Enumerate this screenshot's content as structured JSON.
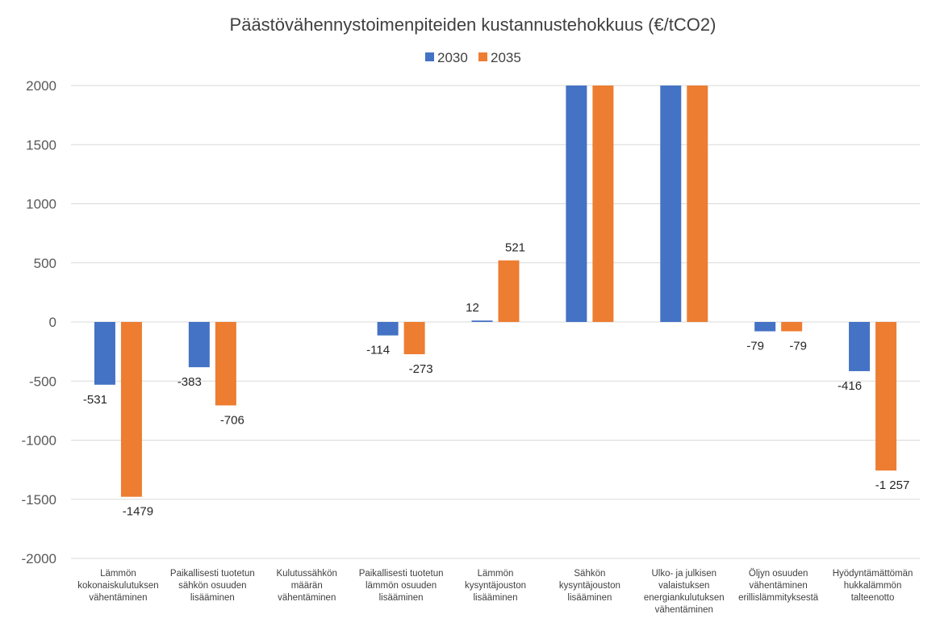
{
  "chart_data": {
    "type": "bar",
    "title": "Päästövähennystoimenpiteiden kustannustehokkuus (€/tCO2)",
    "ylim": [
      -2000,
      2000
    ],
    "yticks": [
      2000,
      1500,
      1000,
      500,
      0,
      -500,
      -1000,
      -1500,
      -2000
    ],
    "grid": true,
    "legend_position": "top",
    "categories": [
      [
        "Lämmön",
        "kokonaiskulutuksen",
        "vähentäminen"
      ],
      [
        "Paikallisesti tuotetun",
        "sähkön osuuden",
        "lisääminen"
      ],
      [
        "Kulutussähkön",
        "määrän",
        "vähentäminen"
      ],
      [
        "Paikallisesti tuotetun",
        "lämmön osuuden",
        "lisääminen"
      ],
      [
        "Lämmön",
        "kysyntäjouston",
        "lisääminen"
      ],
      [
        "Sähkön",
        "kysyntäjouston",
        "lisääminen"
      ],
      [
        "Ulko- ja julkisen",
        "valaistuksen",
        "energiankulutuksen",
        "vähentäminen"
      ],
      [
        "Öljyn osuuden",
        "vähentäminen",
        "erillislämmityksestä"
      ],
      [
        "Hyödyntämättömän",
        "hukkalämmön",
        "talteenotto"
      ]
    ],
    "series": [
      {
        "name": "2030",
        "color": "#4472C4",
        "values": [
          -531,
          -383,
          null,
          -114,
          12,
          2000,
          2000,
          -79,
          -416
        ],
        "labels": [
          "-531",
          "-383",
          "",
          "-114",
          "12",
          "",
          "",
          "-79",
          "-416"
        ]
      },
      {
        "name": "2035",
        "color": "#ED7D31",
        "values": [
          -1479,
          -706,
          null,
          -273,
          521,
          2000,
          2000,
          -79,
          -1257
        ],
        "labels": [
          "-1479",
          "-706",
          "",
          "-273",
          "521",
          "",
          "",
          "-79",
          "-1 257"
        ]
      }
    ]
  }
}
